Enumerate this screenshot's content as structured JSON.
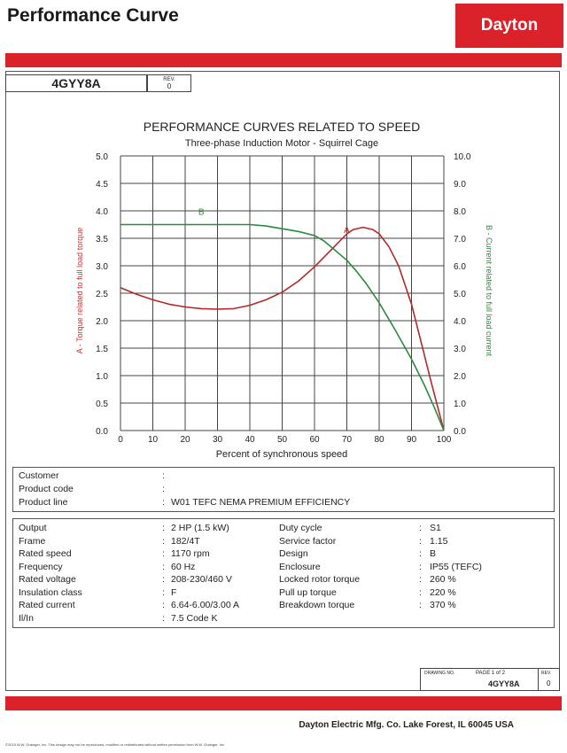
{
  "header": {
    "title": "Performance Curve",
    "logo_text": "Dayton"
  },
  "model_box": {
    "model": "4GYY8A",
    "rev_label": "REV.",
    "rev_value": "0"
  },
  "chart_data": {
    "type": "line",
    "title": "PERFORMANCE CURVES RELATED TO SPEED",
    "subtitle": "Three-phase Induction Motor - Squirrel Cage",
    "xlabel": "Percent of synchronous speed",
    "ylabel_left": "A - Torque related to full load torque",
    "ylabel_right": "B - Current related to full load current",
    "x_ticks": [
      "0",
      "10",
      "20",
      "30",
      "40",
      "50",
      "60",
      "70",
      "80",
      "90",
      "100"
    ],
    "y_left_ticks": [
      "0.0",
      "0.5",
      "1.0",
      "1.5",
      "2.0",
      "2.5",
      "3.0",
      "3.5",
      "4.0",
      "4.5",
      "5.0"
    ],
    "y_right_ticks": [
      "0.0",
      "1.0",
      "2.0",
      "3.0",
      "4.0",
      "5.0",
      "6.0",
      "7.0",
      "8.0",
      "9.0",
      "10.0"
    ],
    "xlim": [
      0,
      100
    ],
    "ylim_left": [
      0,
      5
    ],
    "ylim_right": [
      0,
      10
    ],
    "grid": true,
    "series": [
      {
        "name": "A",
        "axis": "left",
        "color": "#b02a2a",
        "label_at": [
          70,
          3.6
        ],
        "x": [
          0,
          5,
          10,
          15,
          20,
          25,
          30,
          35,
          40,
          45,
          50,
          55,
          60,
          65,
          70,
          72,
          75,
          78,
          80,
          83,
          86,
          90,
          93,
          96,
          98,
          100
        ],
        "y": [
          2.6,
          2.48,
          2.38,
          2.3,
          2.25,
          2.22,
          2.21,
          2.22,
          2.28,
          2.38,
          2.52,
          2.72,
          2.98,
          3.28,
          3.58,
          3.66,
          3.7,
          3.66,
          3.58,
          3.35,
          3.0,
          2.3,
          1.6,
          0.9,
          0.45,
          0.0
        ]
      },
      {
        "name": "B",
        "axis": "right",
        "color": "#2b8a3c",
        "label_at": [
          25,
          7.85
        ],
        "x": [
          0,
          10,
          20,
          30,
          40,
          45,
          50,
          55,
          60,
          63,
          66,
          70,
          73,
          76,
          80,
          85,
          90,
          94,
          97,
          100
        ],
        "y": [
          7.5,
          7.5,
          7.5,
          7.5,
          7.5,
          7.45,
          7.35,
          7.25,
          7.1,
          6.9,
          6.6,
          6.2,
          5.8,
          5.35,
          4.65,
          3.65,
          2.6,
          1.65,
          0.85,
          0.0
        ]
      }
    ]
  },
  "customer_table": {
    "rows": [
      {
        "label": "Customer",
        "value": ""
      },
      {
        "label": "Product code",
        "value": ""
      },
      {
        "label": "Product line",
        "value": "W01 TEFC NEMA PREMIUM EFFICIENCY"
      }
    ]
  },
  "specs_table": {
    "left": [
      {
        "label": "Output",
        "value": "2 HP (1.5 kW)"
      },
      {
        "label": "Frame",
        "value": "182/4T"
      },
      {
        "label": "Rated speed",
        "value": "1170 rpm"
      },
      {
        "label": "Frequency",
        "value": "60 Hz"
      },
      {
        "label": "Rated voltage",
        "value": "208-230/460 V"
      },
      {
        "label": "Insulation class",
        "value": "F"
      },
      {
        "label": "Rated current",
        "value": "6.64-6.00/3.00 A"
      },
      {
        "label": "Il/In",
        "value": "7.5   Code K"
      }
    ],
    "right": [
      {
        "label": "Duty cycle",
        "value": "S1"
      },
      {
        "label": "Service factor",
        "value": "1.15"
      },
      {
        "label": "Design",
        "value": "B"
      },
      {
        "label": "Enclosure",
        "value": "IP55 (TEFC)"
      },
      {
        "label": "Locked rotor torque",
        "value": "260 %"
      },
      {
        "label": "Pull up torque",
        "value": "220 %"
      },
      {
        "label": "Breakdown torque",
        "value": "370 %"
      }
    ]
  },
  "drawing_box": {
    "drawing_no_label": "DRAWING NO.",
    "page_label": "PAGE 1 of 2",
    "model": "4GYY8A",
    "rev_label": "REV.",
    "rev_value": "0"
  },
  "footer": {
    "company": "Dayton Electric Mfg. Co.  Lake Forest, IL  60045  USA",
    "copyright": "©2015 W.W. Grainger, Inc.   This design may not be reproduced, modified or redistributed without written permission from W.W. Grainger, Inc."
  }
}
